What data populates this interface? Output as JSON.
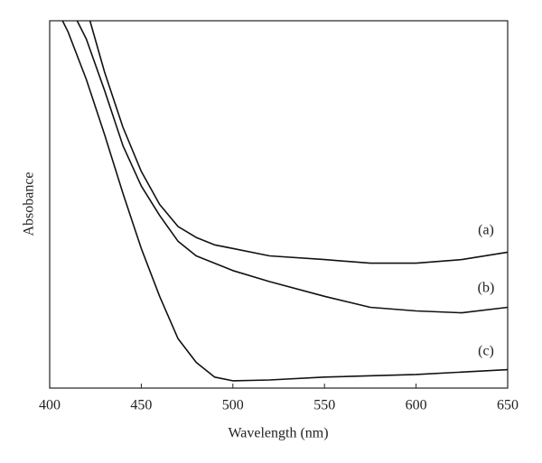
{
  "chart_data": {
    "type": "line",
    "xlabel": "Wavelength (nm)",
    "ylabel": "Absobance",
    "xlim": [
      400,
      650
    ],
    "xticks": [
      400,
      450,
      500,
      550,
      600,
      650
    ],
    "ylim": [
      0,
      1
    ],
    "series": [
      {
        "name": "(a)",
        "color": "#111111",
        "x": [
          422,
          430,
          440,
          450,
          460,
          470,
          480,
          490,
          500,
          520,
          550,
          575,
          600,
          625,
          650
        ],
        "values": [
          1.0,
          0.86,
          0.71,
          0.59,
          0.5,
          0.44,
          0.41,
          0.39,
          0.38,
          0.36,
          0.35,
          0.34,
          0.34,
          0.35,
          0.37
        ]
      },
      {
        "name": "(b)",
        "color": "#111111",
        "x": [
          415,
          420,
          430,
          440,
          450,
          460,
          470,
          480,
          490,
          500,
          520,
          550,
          575,
          600,
          625,
          650
        ],
        "values": [
          1.0,
          0.95,
          0.81,
          0.66,
          0.55,
          0.47,
          0.4,
          0.36,
          0.34,
          0.32,
          0.29,
          0.25,
          0.22,
          0.21,
          0.205,
          0.22
        ]
      },
      {
        "name": "(c)",
        "color": "#111111",
        "x": [
          407,
          410,
          420,
          430,
          440,
          450,
          460,
          470,
          480,
          490,
          500,
          520,
          550,
          600,
          650
        ],
        "values": [
          1.0,
          0.97,
          0.84,
          0.69,
          0.53,
          0.38,
          0.25,
          0.135,
          0.07,
          0.03,
          0.02,
          0.022,
          0.03,
          0.037,
          0.05
        ]
      }
    ]
  }
}
